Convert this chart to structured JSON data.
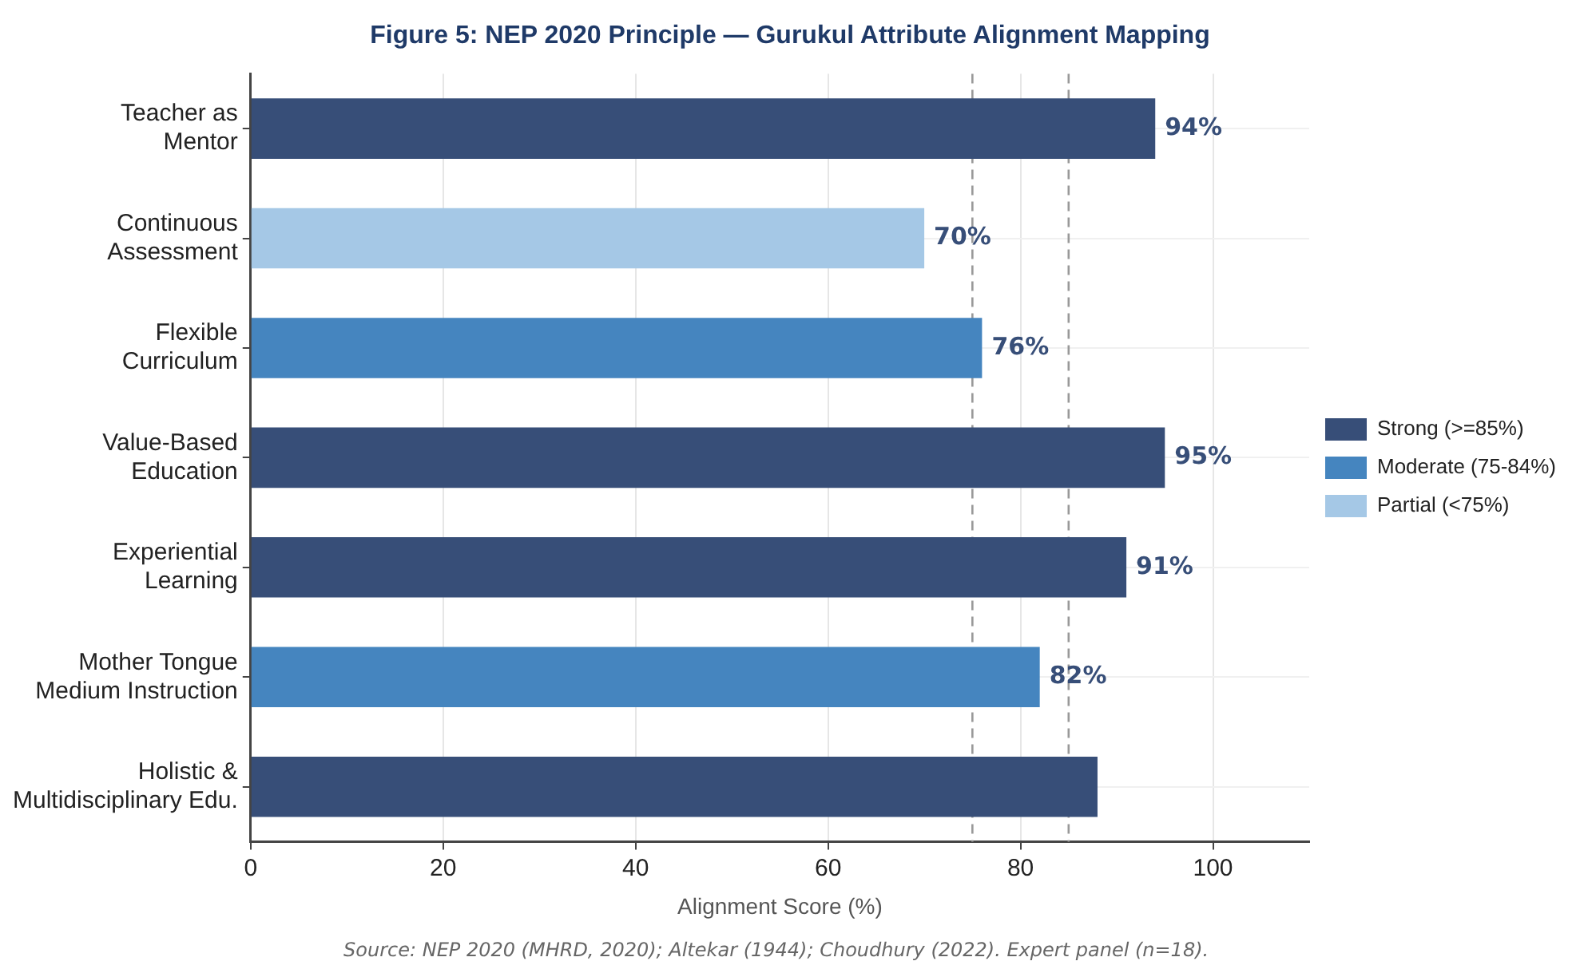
{
  "chart_data": {
    "type": "bar",
    "orientation": "horizontal",
    "stacked": true,
    "title": "Figure 5: NEP 2020 Principle — Gurukul Attribute Alignment Mapping",
    "xlabel": "Alignment Score (%)",
    "categories": [
      "Teacher as\nMentor",
      "Continuous\nAssessment",
      "Flexible\nCurriculum",
      "Value-Based\nEducation",
      "Experiential\nLearning",
      "Mother Tongue\nMedium Instruction",
      "Holistic &\nMultidisciplinary Edu."
    ],
    "series": [
      {
        "name": "Strong (>=85%)",
        "color": "#374e78",
        "values": [
          94,
          null,
          null,
          95,
          91,
          null,
          88
        ],
        "value_labels": [
          "94%",
          null,
          null,
          "95%",
          "91%",
          null,
          null
        ]
      },
      {
        "name": "Moderate (75-84%)",
        "color": "#4585bf",
        "values": [
          null,
          null,
          76,
          null,
          null,
          82,
          null
        ],
        "value_labels": [
          null,
          null,
          "76%",
          null,
          null,
          "82%",
          null
        ]
      },
      {
        "name": "Partial (<75%)",
        "color": "#a5c8e6",
        "values": [
          null,
          70,
          null,
          null,
          null,
          null,
          null
        ],
        "value_labels": [
          null,
          "70%",
          null,
          null,
          null,
          null,
          null
        ]
      }
    ],
    "xlim": [
      0,
      110
    ],
    "xticks": [
      0,
      20,
      40,
      60,
      80,
      100
    ],
    "ref_lines": [
      {
        "axis": "x",
        "value": 75,
        "color": "#999999",
        "line_style": "dashed"
      },
      {
        "axis": "x",
        "value": 85,
        "color": "#999999",
        "line_style": "dashed"
      }
    ],
    "grid": true,
    "legend": "right",
    "annotations": [
      "Source: NEP 2020 (MHRD, 2020); Altekar (1944); Choudhury (2022). Expert panel (n=18)."
    ]
  }
}
